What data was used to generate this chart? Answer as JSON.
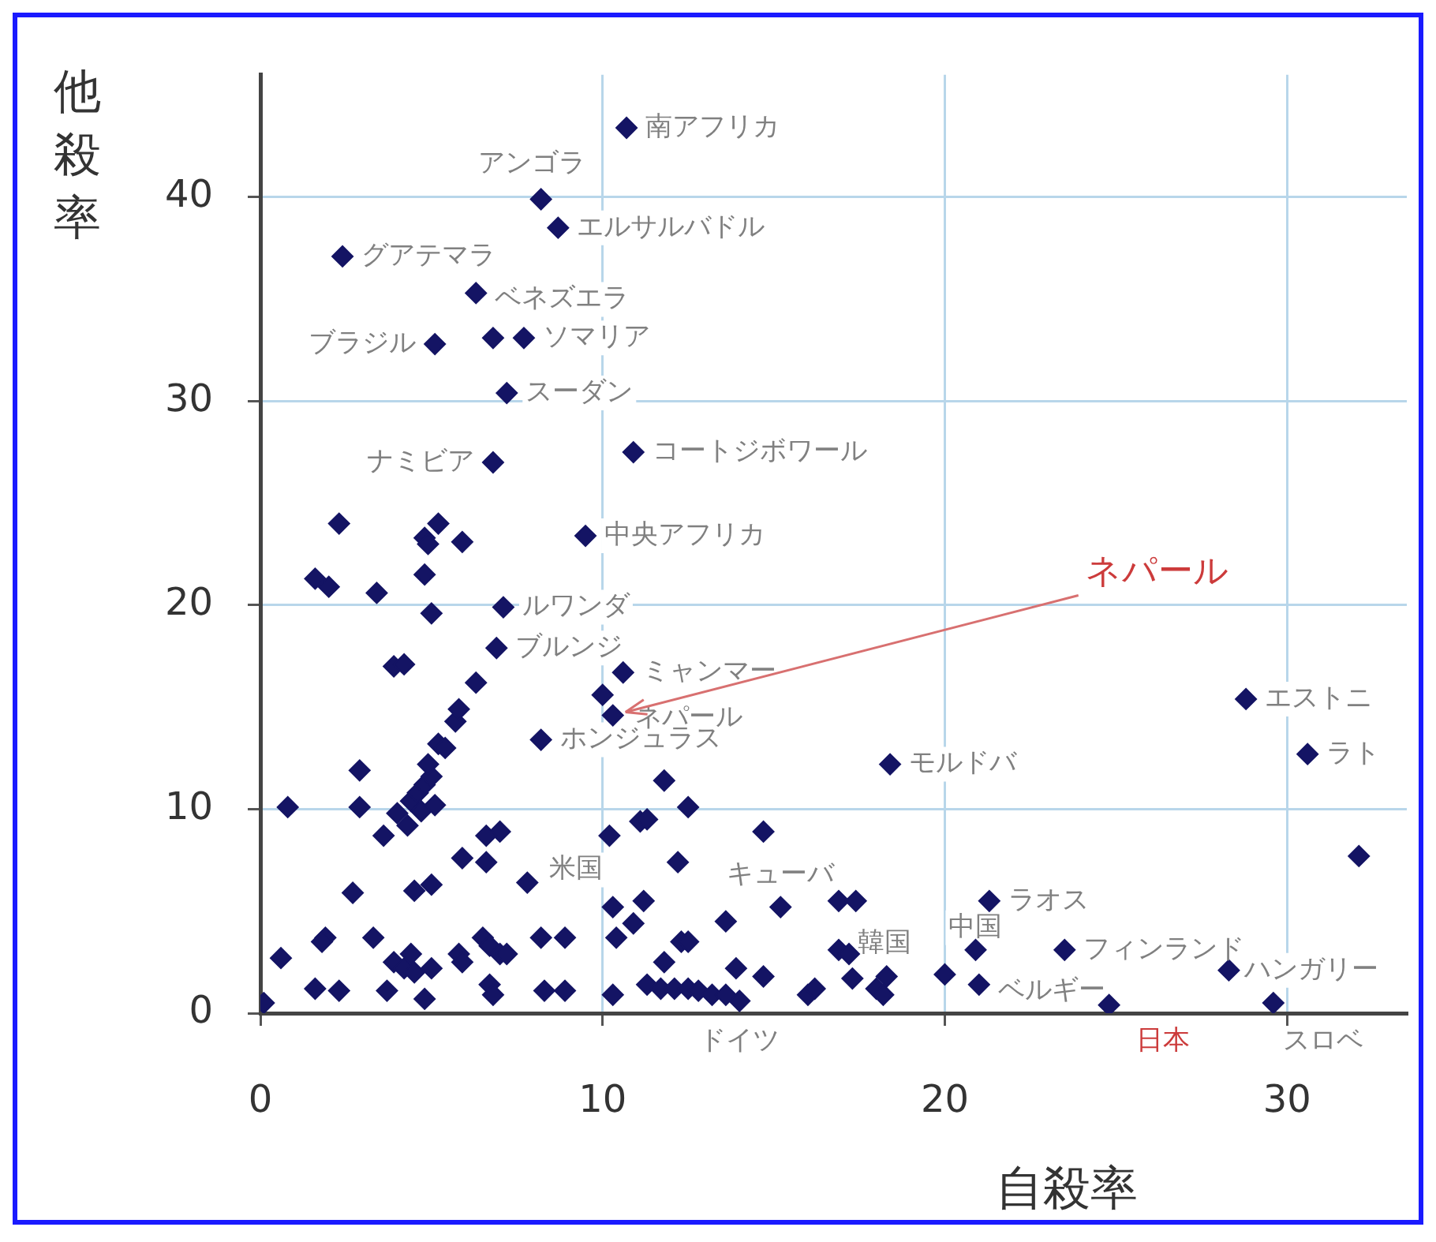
{
  "chart_data": {
    "type": "scatter",
    "xlabel": "自殺率",
    "ylabel": "他殺率",
    "xlim": [
      0,
      33.5
    ],
    "ylim": [
      0,
      46
    ],
    "xticks": [
      0,
      10,
      20,
      30
    ],
    "yticks": [
      0,
      10,
      20,
      30,
      40
    ],
    "grid": true,
    "legend": false,
    "marker": "diamond",
    "series": [
      {
        "color": "#141464",
        "x": [
          10.7,
          8.2,
          8.7,
          2.4,
          6.3,
          5.1,
          6.8,
          7.7,
          7.2,
          6.8,
          10.9,
          9.5,
          7.1,
          6.9,
          10.6,
          10.0,
          10.3,
          8.2,
          18.4,
          28.8,
          30.6,
          32.1,
          7.8,
          15.2,
          16.9,
          20.9,
          21.3,
          23.5,
          28.3,
          21.0,
          24.8,
          29.6,
          14.0,
          0.1,
          0.8,
          0.6,
          1.6,
          1.9,
          1.8,
          2.3,
          2.3,
          1.6,
          2.0,
          2.7,
          2.9,
          2.9,
          3.4,
          3.3,
          3.7,
          3.9,
          4.2,
          3.6,
          4.0,
          4.3,
          4.4,
          4.6,
          4.8,
          5.0,
          4.7,
          5.1,
          4.9,
          3.9,
          4.2,
          4.4,
          4.5,
          4.8,
          5.0,
          4.8,
          5.2,
          4.9,
          4.8,
          5.0,
          5.9,
          4.5,
          5.0,
          5.2,
          5.4,
          5.7,
          5.8,
          6.3,
          5.9,
          6.6,
          7.0,
          6.6,
          5.8,
          5.9,
          6.5,
          6.7,
          7.0,
          7.2,
          6.7,
          6.8,
          8.2,
          8.9,
          8.3,
          8.9,
          10.2,
          10.3,
          10.4,
          10.9,
          10.3,
          11.1,
          11.3,
          11.2,
          11.8,
          12.5,
          12.2,
          11.8,
          12.3,
          12.5,
          11.3,
          11.7,
          12.1,
          12.5,
          12.8,
          13.2,
          13.6,
          13.6,
          13.9,
          14.7,
          14.7,
          16.0,
          16.2,
          16.9,
          17.4,
          17.2,
          17.3,
          18.0,
          18.2,
          18.3,
          20.0
        ],
        "values": [
          43.4,
          39.9,
          38.5,
          37.1,
          35.3,
          32.8,
          33.1,
          33.1,
          30.4,
          27.0,
          27.5,
          23.4,
          19.9,
          17.9,
          16.7,
          15.6,
          14.6,
          13.4,
          12.2,
          15.4,
          12.7,
          7.7,
          6.4,
          5.2,
          3.1,
          3.1,
          5.5,
          3.1,
          2.1,
          1.4,
          0.4,
          0.5,
          0.6,
          0.5,
          10.1,
          2.7,
          1.2,
          3.7,
          3.5,
          1.1,
          24.0,
          21.3,
          20.9,
          5.9,
          11.9,
          10.1,
          20.6,
          3.7,
          1.1,
          17.0,
          17.1,
          8.7,
          9.8,
          9.2,
          10.4,
          10.8,
          11.2,
          11.6,
          9.9,
          10.2,
          12.2,
          2.5,
          2.2,
          2.9,
          2.0,
          0.7,
          2.2,
          23.3,
          24.0,
          23.0,
          21.5,
          19.6,
          23.1,
          6.0,
          6.3,
          13.2,
          13.0,
          14.3,
          14.9,
          16.2,
          7.6,
          7.4,
          8.9,
          8.7,
          2.9,
          2.5,
          3.7,
          3.3,
          2.9,
          2.9,
          1.4,
          0.9,
          3.7,
          3.7,
          1.1,
          1.1,
          8.7,
          5.2,
          3.7,
          4.4,
          0.9,
          9.4,
          9.5,
          5.5,
          11.4,
          10.1,
          7.4,
          2.5,
          3.5,
          3.5,
          1.4,
          1.2,
          1.2,
          1.2,
          1.1,
          0.9,
          0.9,
          4.5,
          2.2,
          8.9,
          1.8,
          0.9,
          1.2,
          5.5,
          5.5,
          2.9,
          1.7,
          1.2,
          0.9,
          1.8,
          1.9
        ]
      }
    ],
    "annotations": [
      {
        "text": "南アフリカ",
        "x": 10.7,
        "y": 43.4
      },
      {
        "text": "アンゴラ",
        "x": 8.2,
        "y": 39.9
      },
      {
        "text": "エルサルバドル",
        "x": 8.7,
        "y": 38.5
      },
      {
        "text": "グアテマラ",
        "x": 2.4,
        "y": 37.1
      },
      {
        "text": "ベネズエラ",
        "x": 6.3,
        "y": 35.3
      },
      {
        "text": "ブラジル",
        "x": 5.1,
        "y": 32.8
      },
      {
        "text": "ソマリア",
        "x": 7.7,
        "y": 33.1
      },
      {
        "text": "スーダン",
        "x": 7.2,
        "y": 30.4
      },
      {
        "text": "ナミビア",
        "x": 6.8,
        "y": 27.0
      },
      {
        "text": "コートジボワール",
        "x": 10.9,
        "y": 27.5
      },
      {
        "text": "中央アフリカ",
        "x": 9.5,
        "y": 23.4
      },
      {
        "text": "ルワンダ",
        "x": 7.1,
        "y": 19.9
      },
      {
        "text": "ブルンジ",
        "x": 6.9,
        "y": 17.9
      },
      {
        "text": "ミャンマー",
        "x": 10.6,
        "y": 16.7
      },
      {
        "text": "ネパール",
        "x": 10.3,
        "y": 14.6
      },
      {
        "text": "ホンジュラス",
        "x": 8.2,
        "y": 13.4
      },
      {
        "text": "モルドバ",
        "x": 18.4,
        "y": 12.2
      },
      {
        "text": "エストニ",
        "x": 28.8,
        "y": 15.4
      },
      {
        "text": "ラト",
        "x": 30.6,
        "y": 12.7
      },
      {
        "text": "米国",
        "x": 7.8,
        "y": 6.4
      },
      {
        "text": "キューバ",
        "x": 15.2,
        "y": 5.2
      },
      {
        "text": "韓国",
        "x": 16.9,
        "y": 3.1
      },
      {
        "text": "中国",
        "x": 20.9,
        "y": 3.1
      },
      {
        "text": "ラオス",
        "x": 21.3,
        "y": 5.5
      },
      {
        "text": "フィンランド",
        "x": 23.5,
        "y": 3.1
      },
      {
        "text": "ハンガリー",
        "x": 28.3,
        "y": 2.1
      },
      {
        "text": "ベルギー",
        "x": 21.0,
        "y": 1.4
      },
      {
        "text": "日本",
        "x": 24.8,
        "y": 0.4
      },
      {
        "text": "スロベ",
        "x": 29.6,
        "y": 0.5
      },
      {
        "text": "ドイツ",
        "x": 14.0,
        "y": 0.6
      },
      {
        "text": "ネパール",
        "x": 10.3,
        "y": 14.6
      }
    ]
  }
}
